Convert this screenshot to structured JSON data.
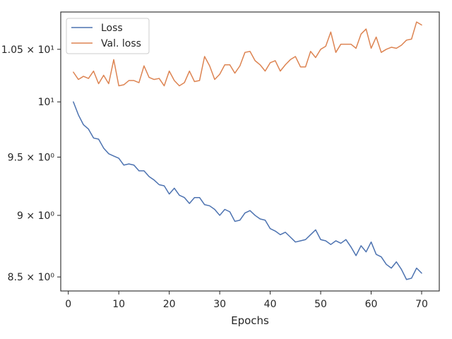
{
  "chart_data": {
    "type": "line",
    "title": "",
    "xlabel": "Epochs",
    "ylabel": "",
    "y_scale": "log",
    "xlim": [
      -1.5,
      73.5
    ],
    "ylim": [
      8.39,
      10.87
    ],
    "x_ticks": [
      0,
      10,
      20,
      30,
      40,
      50,
      60,
      70
    ],
    "x_tick_labels": [
      "0",
      "10",
      "20",
      "30",
      "40",
      "50",
      "60",
      "70"
    ],
    "y_ticks": [
      8.5,
      9,
      9.5,
      10,
      10.5
    ],
    "y_tick_labels": [
      "8.5 × 10⁰",
      "9 × 10⁰",
      "9.5 × 10⁰",
      "10¹",
      "1.05 × 10¹"
    ],
    "grid": false,
    "legend_position": "upper-left",
    "x": [
      1,
      2,
      3,
      4,
      5,
      6,
      7,
      8,
      9,
      10,
      11,
      12,
      13,
      14,
      15,
      16,
      17,
      18,
      19,
      20,
      21,
      22,
      23,
      24,
      25,
      26,
      27,
      28,
      29,
      30,
      31,
      32,
      33,
      34,
      35,
      36,
      37,
      38,
      39,
      40,
      41,
      42,
      43,
      44,
      45,
      46,
      47,
      48,
      49,
      50,
      51,
      52,
      53,
      54,
      55,
      56,
      57,
      58,
      59,
      60,
      61,
      62,
      63,
      64,
      65,
      66,
      67,
      68,
      69,
      70
    ],
    "series": [
      {
        "name": "Loss",
        "color": "#4c72b0",
        "values": [
          10.0,
          9.88,
          9.79,
          9.75,
          9.67,
          9.66,
          9.58,
          9.53,
          9.51,
          9.49,
          9.43,
          9.44,
          9.43,
          9.38,
          9.38,
          9.33,
          9.3,
          9.26,
          9.25,
          9.18,
          9.23,
          9.17,
          9.15,
          9.1,
          9.15,
          9.15,
          9.09,
          9.08,
          9.05,
          9.0,
          9.05,
          9.03,
          8.95,
          8.96,
          9.02,
          9.04,
          9.0,
          8.97,
          8.96,
          8.89,
          8.87,
          8.84,
          8.86,
          8.82,
          8.78,
          8.79,
          8.8,
          8.84,
          8.88,
          8.8,
          8.79,
          8.76,
          8.79,
          8.77,
          8.8,
          8.74,
          8.67,
          8.75,
          8.7,
          8.78,
          8.68,
          8.66,
          8.6,
          8.57,
          8.62,
          8.56,
          8.48,
          8.49,
          8.57,
          8.53
        ]
      },
      {
        "name": "Val. loss",
        "color": "#dd8452",
        "values": [
          10.28,
          10.21,
          10.24,
          10.22,
          10.29,
          10.17,
          10.25,
          10.17,
          10.4,
          10.15,
          10.16,
          10.2,
          10.2,
          10.18,
          10.34,
          10.23,
          10.21,
          10.22,
          10.15,
          10.29,
          10.2,
          10.15,
          10.18,
          10.29,
          10.19,
          10.2,
          10.43,
          10.34,
          10.21,
          10.26,
          10.35,
          10.35,
          10.27,
          10.34,
          10.47,
          10.48,
          10.39,
          10.35,
          10.29,
          10.37,
          10.39,
          10.29,
          10.35,
          10.4,
          10.43,
          10.33,
          10.33,
          10.48,
          10.42,
          10.5,
          10.53,
          10.67,
          10.47,
          10.55,
          10.55,
          10.55,
          10.51,
          10.65,
          10.7,
          10.51,
          10.62,
          10.47,
          10.5,
          10.52,
          10.51,
          10.54,
          10.59,
          10.6,
          10.77,
          10.74
        ]
      }
    ]
  }
}
